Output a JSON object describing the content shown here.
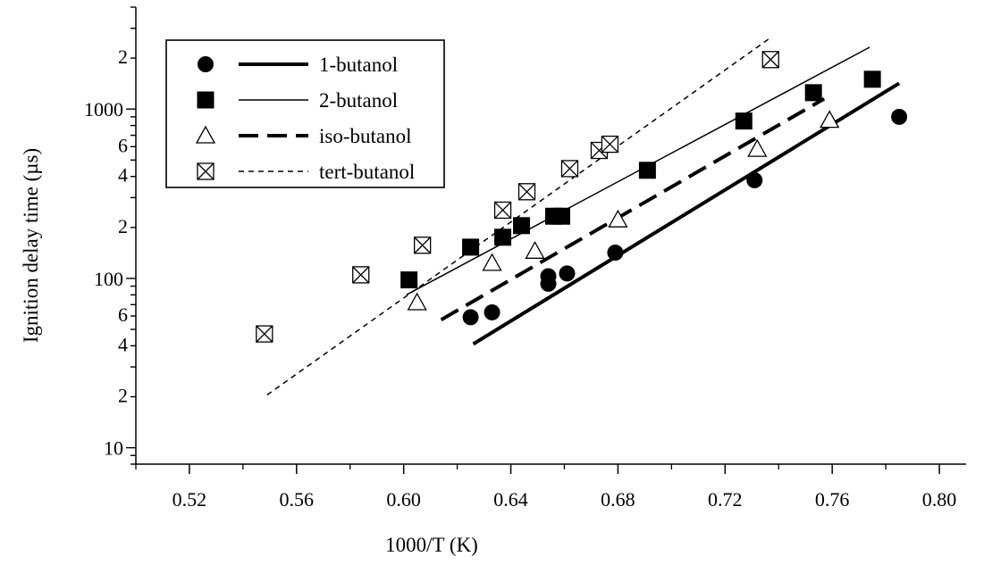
{
  "chart_data": {
    "type": "scatter",
    "title": "",
    "xlabel": "1000/T (K)",
    "ylabel": "Ignition delay time (µs)",
    "xlim": [
      0.5,
      0.81
    ],
    "ylim": [
      8,
      4000
    ],
    "y_scale": "log",
    "grid": false,
    "legend_position": "top-left",
    "x_ticks": [
      {
        "value": 0.52,
        "label": "0.52"
      },
      {
        "value": 0.56,
        "label": "0.56"
      },
      {
        "value": 0.6,
        "label": "0.60"
      },
      {
        "value": 0.64,
        "label": "0.64"
      },
      {
        "value": 0.68,
        "label": "0.68"
      },
      {
        "value": 0.72,
        "label": "0.72"
      },
      {
        "value": 0.76,
        "label": "0.76"
      },
      {
        "value": 0.8,
        "label": "0.80"
      }
    ],
    "y_major_ticks": [
      {
        "value": 10,
        "label": "10"
      },
      {
        "value": 100,
        "label": "100"
      },
      {
        "value": 1000,
        "label": "1000"
      }
    ],
    "y_minor_labels": [
      {
        "value": 20,
        "label": "2"
      },
      {
        "value": 40,
        "label": "4"
      },
      {
        "value": 60,
        "label": "6"
      },
      {
        "value": 200,
        "label": "2"
      },
      {
        "value": 400,
        "label": "4"
      },
      {
        "value": 600,
        "label": "6"
      },
      {
        "value": 2000,
        "label": "2"
      }
    ],
    "series": [
      {
        "name": "1-butanol",
        "marker": "filled-circle",
        "line_style": "thick-solid",
        "points": [
          {
            "x": 0.625,
            "y": 59
          },
          {
            "x": 0.633,
            "y": 63
          },
          {
            "x": 0.654,
            "y": 93
          },
          {
            "x": 0.654,
            "y": 103
          },
          {
            "x": 0.661,
            "y": 107
          },
          {
            "x": 0.679,
            "y": 142
          },
          {
            "x": 0.731,
            "y": 380
          },
          {
            "x": 0.785,
            "y": 900
          }
        ],
        "fit_line": [
          {
            "x": 0.626,
            "y": 41
          },
          {
            "x": 0.785,
            "y": 1420
          }
        ]
      },
      {
        "name": "2-butanol",
        "marker": "filled-square",
        "line_style": "thin-solid",
        "points": [
          {
            "x": 0.602,
            "y": 98
          },
          {
            "x": 0.625,
            "y": 153
          },
          {
            "x": 0.637,
            "y": 175
          },
          {
            "x": 0.644,
            "y": 205
          },
          {
            "x": 0.656,
            "y": 233
          },
          {
            "x": 0.659,
            "y": 233
          },
          {
            "x": 0.691,
            "y": 435
          },
          {
            "x": 0.727,
            "y": 850
          },
          {
            "x": 0.753,
            "y": 1250
          },
          {
            "x": 0.775,
            "y": 1500
          }
        ],
        "fit_line": [
          {
            "x": 0.601,
            "y": 80
          },
          {
            "x": 0.774,
            "y": 2320
          }
        ]
      },
      {
        "name": "iso-butanol",
        "marker": "open-triangle",
        "line_style": "thick-dashed",
        "points": [
          {
            "x": 0.605,
            "y": 72
          },
          {
            "x": 0.633,
            "y": 123
          },
          {
            "x": 0.649,
            "y": 145
          },
          {
            "x": 0.68,
            "y": 222
          },
          {
            "x": 0.732,
            "y": 580
          },
          {
            "x": 0.759,
            "y": 860
          }
        ],
        "fit_line": [
          {
            "x": 0.614,
            "y": 57
          },
          {
            "x": 0.757,
            "y": 1150
          }
        ]
      },
      {
        "name": "tert-butanol",
        "marker": "bowtie",
        "line_style": "thin-dashed",
        "points": [
          {
            "x": 0.548,
            "y": 47
          },
          {
            "x": 0.584,
            "y": 105
          },
          {
            "x": 0.607,
            "y": 157
          },
          {
            "x": 0.637,
            "y": 253
          },
          {
            "x": 0.646,
            "y": 325
          },
          {
            "x": 0.662,
            "y": 445
          },
          {
            "x": 0.673,
            "y": 570
          },
          {
            "x": 0.677,
            "y": 620
          },
          {
            "x": 0.737,
            "y": 1960
          }
        ],
        "fit_line": [
          {
            "x": 0.549,
            "y": 20.5
          },
          {
            "x": 0.737,
            "y": 2640
          }
        ]
      }
    ]
  }
}
